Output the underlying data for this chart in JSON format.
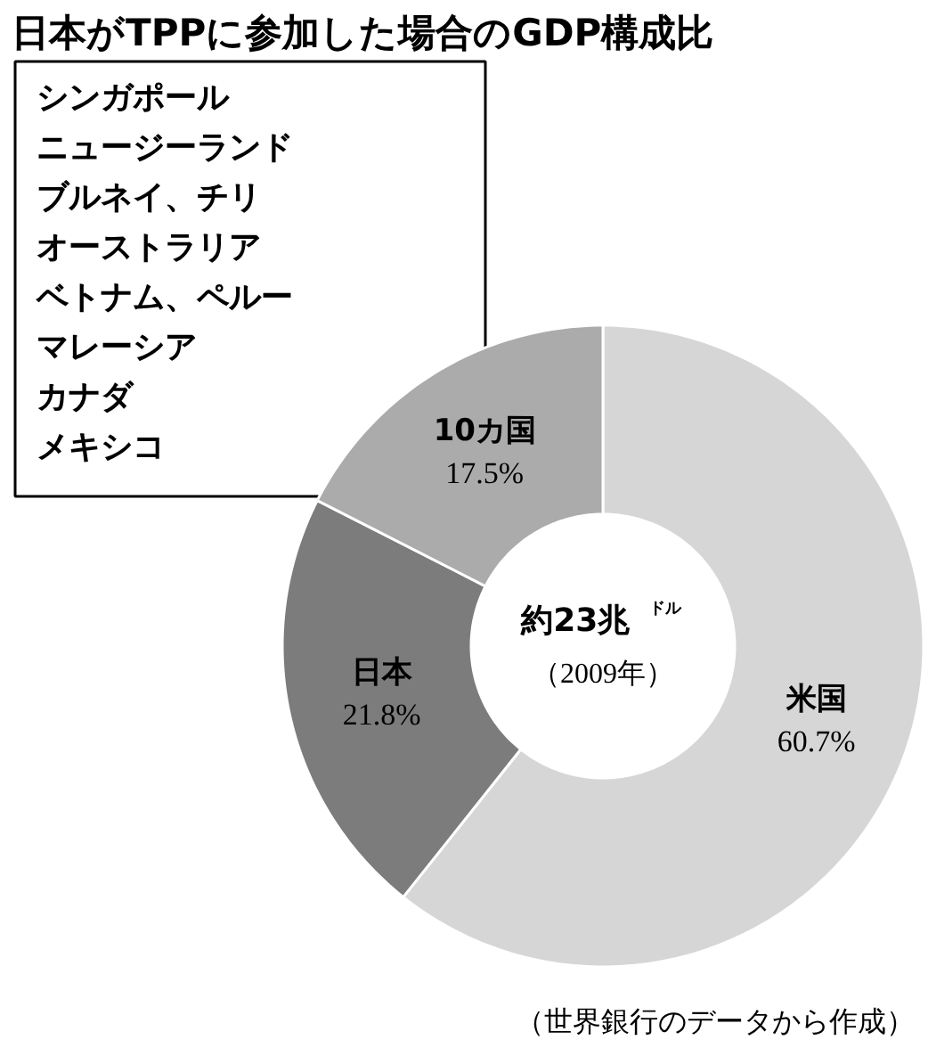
{
  "chart_data": {
    "type": "donut",
    "title": "日本がTPPに参加した場合のGDP構成比",
    "categories": [
      "米国",
      "日本",
      "10カ国"
    ],
    "values": [
      60.7,
      21.8,
      17.5
    ],
    "colors": [
      "#d6d6d6",
      "#7c7c7c",
      "#ababab"
    ],
    "value_labels": [
      "60.7%",
      "21.8%",
      "17.5%"
    ],
    "annotations": [
      "シンガポール",
      "ニュージーランド",
      "ブルネイ、チリ",
      "オーストラリア",
      "ベトナム、ペルー",
      "マレーシア",
      "カナダ",
      "メキシコ",
      "約23兆$^{ドル}$",
      "（2009年）",
      "（世界銀行のデータから作成）"
    ]
  }
}
